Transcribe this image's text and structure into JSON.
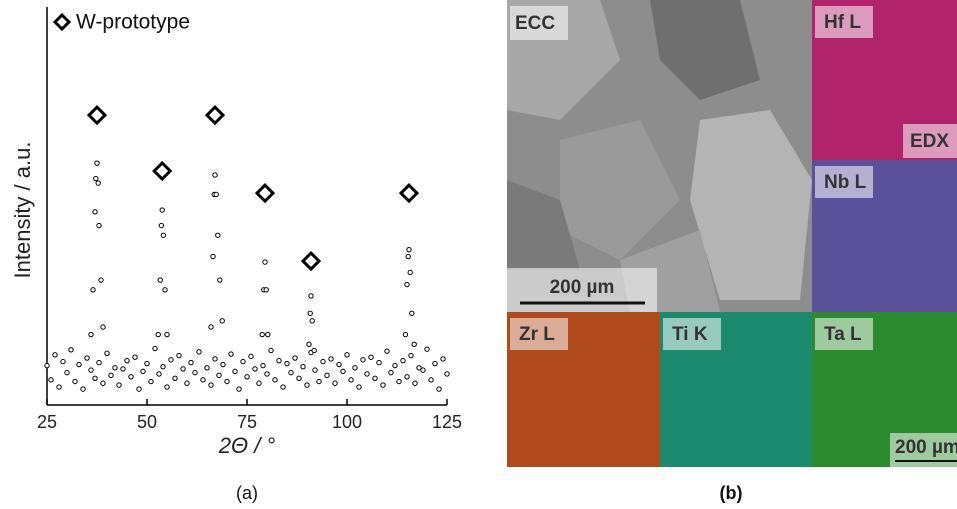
{
  "chart_data": {
    "type": "scatter",
    "xlabel": "2Θ / °",
    "ylabel": "Intensity / a.u.",
    "xlim": [
      25,
      125
    ],
    "xticks": [
      25,
      50,
      75,
      100,
      125
    ],
    "ylim": [
      1,
      100000
    ],
    "ylog": true,
    "series": [
      {
        "color": "#000000",
        "marker": "circle",
        "x": [
          25,
          26,
          27,
          28,
          29,
          30,
          31,
          32,
          33,
          34,
          35,
          36,
          37,
          38,
          39,
          40,
          41,
          42,
          43,
          44,
          45,
          46,
          47,
          48,
          49,
          50,
          51,
          52,
          53,
          54,
          55,
          56,
          57,
          58,
          59,
          60,
          61,
          62,
          63,
          64,
          65,
          66,
          67,
          68,
          69,
          70,
          71,
          72,
          73,
          74,
          75,
          76,
          77,
          78,
          79,
          80,
          81,
          82,
          83,
          84,
          85,
          86,
          87,
          88,
          89,
          90,
          91,
          92,
          93,
          94,
          95,
          96,
          97,
          98,
          99,
          100,
          101,
          102,
          103,
          104,
          105,
          106,
          107,
          108,
          109,
          110,
          111,
          112,
          113,
          114,
          115,
          116,
          117,
          118,
          119,
          120,
          121,
          122,
          123,
          124,
          125
        ],
        "values": [
          3.2,
          2.1,
          4.4,
          1.7,
          3.6,
          2.6,
          5.1,
          2.0,
          3.3,
          1.6,
          4.0,
          2.8,
          2.2,
          3.5,
          1.9,
          4.6,
          2.4,
          3.0,
          1.8,
          2.9,
          3.7,
          2.3,
          4.1,
          1.6,
          2.7,
          3.4,
          2.0,
          5.3,
          2.5,
          3.1,
          1.7,
          3.8,
          2.2,
          4.3,
          2.9,
          1.9,
          3.5,
          2.6,
          4.8,
          2.1,
          3.0,
          1.8,
          3.9,
          2.4,
          3.3,
          2.0,
          4.5,
          2.7,
          1.6,
          3.6,
          2.3,
          4.2,
          2.9,
          1.9,
          3.2,
          2.5,
          5.0,
          2.1,
          3.7,
          1.7,
          3.4,
          2.6,
          4.0,
          2.2,
          3.1,
          1.8,
          4.7,
          2.8,
          2.0,
          3.6,
          2.4,
          3.9,
          1.9,
          3.3,
          2.7,
          4.4,
          2.1,
          3.0,
          1.7,
          3.8,
          2.5,
          4.1,
          2.2,
          3.5,
          1.8,
          4.9,
          2.6,
          3.2,
          2.0,
          3.7,
          2.3,
          4.3,
          1.9,
          3.0,
          2.8,
          5.2,
          2.1,
          3.4,
          1.6,
          3.9,
          2.5
        ]
      },
      {
        "color": "#000000",
        "marker": "circle",
        "x": [
          36,
          36.5,
          37,
          37.2,
          37.5,
          37.8,
          38,
          38.5,
          39,
          52.8,
          53.3,
          53.6,
          53.8,
          54.1,
          54.5,
          55,
          66,
          66.5,
          66.8,
          67,
          67.3,
          67.7,
          68.2,
          68.8,
          78.8,
          79.2,
          79.5,
          79.8,
          80.2,
          90.5,
          90.8,
          91,
          91.3,
          91.8,
          114.6,
          115,
          115.3,
          115.5,
          115.8,
          116.2,
          116.8
        ],
        "values": [
          8,
          30,
          300,
          800,
          1260,
          700,
          200,
          40,
          10,
          8,
          40,
          200,
          316,
          150,
          30,
          8,
          10,
          80,
          500,
          890,
          500,
          150,
          40,
          12,
          8,
          30,
          68,
          30,
          8,
          6,
          15,
          25,
          12,
          5,
          8,
          35,
          80,
          98,
          50,
          15,
          6
        ]
      },
      {
        "name": "W-prototype",
        "color": "#000000",
        "marker": "diamond",
        "x": [
          37.5,
          53.8,
          67,
          79.5,
          91,
          115.5
        ],
        "values": [
          5200,
          1000,
          5200,
          520,
          70,
          520
        ]
      }
    ],
    "caption": "(a)"
  },
  "panel_b": {
    "caption": "(b)",
    "ecc": {
      "label": "ECC",
      "scale_bar": "200 µm"
    },
    "maps": [
      {
        "label": "Hf L",
        "color": "#b1236b"
      },
      {
        "label": "Nb L",
        "color": "#5b519b"
      },
      {
        "label": "Zr L",
        "color": "#b0491b"
      },
      {
        "label": "Ti K",
        "color": "#1c8a6d"
      },
      {
        "label": "Ta L",
        "color": "#2b8b2e"
      }
    ],
    "edx_label": "EDX",
    "map_scale_bar": "200 µm"
  }
}
